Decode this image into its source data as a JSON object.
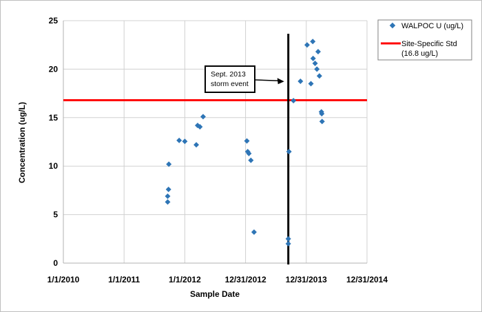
{
  "chart_data": {
    "type": "scatter",
    "xlabel": "Sample Date",
    "ylabel": "Concentration (ug/L)",
    "ylim": [
      0,
      25
    ],
    "yticks": [
      0,
      5,
      10,
      15,
      20,
      25
    ],
    "xlim": [
      "2010-01-01",
      "2014-12-31"
    ],
    "xticks": [
      "2010-01-01",
      "2011-01-01",
      "2012-01-01",
      "2012-12-31",
      "2013-12-31",
      "2014-12-31"
    ],
    "xtick_labels": [
      "1/1/2010",
      "1/1/2011",
      "1/1/2012",
      "12/31/2012",
      "12/31/2013",
      "12/31/2014"
    ],
    "grid": true,
    "legend_position": "top-right",
    "series": [
      {
        "name": "WALPOC U (ug/L)",
        "color": "#2e75b6",
        "marker": "diamond",
        "points": [
          {
            "x": "2011-09-20",
            "y": 6.3
          },
          {
            "x": "2011-09-20",
            "y": 6.9
          },
          {
            "x": "2011-09-25",
            "y": 7.6
          },
          {
            "x": "2011-09-27",
            "y": 10.2
          },
          {
            "x": "2011-11-28",
            "y": 12.65
          },
          {
            "x": "2012-01-01",
            "y": 12.55
          },
          {
            "x": "2012-03-10",
            "y": 12.2
          },
          {
            "x": "2012-03-18",
            "y": 14.2
          },
          {
            "x": "2012-04-01",
            "y": 14.05
          },
          {
            "x": "2012-04-20",
            "y": 15.1
          },
          {
            "x": "2013-01-08",
            "y": 12.6
          },
          {
            "x": "2013-01-13",
            "y": 11.5
          },
          {
            "x": "2013-01-20",
            "y": 11.3
          },
          {
            "x": "2013-02-01",
            "y": 10.6
          },
          {
            "x": "2013-02-20",
            "y": 3.2
          },
          {
            "x": "2013-09-18",
            "y": 11.5
          },
          {
            "x": "2013-09-14",
            "y": 2.5
          },
          {
            "x": "2013-09-14",
            "y": 2.0
          },
          {
            "x": "2013-10-15",
            "y": 16.75
          },
          {
            "x": "2013-11-26",
            "y": 18.75
          },
          {
            "x": "2014-01-05",
            "y": 22.5
          },
          {
            "x": "2014-01-28",
            "y": 18.5
          },
          {
            "x": "2014-02-08",
            "y": 22.85
          },
          {
            "x": "2014-02-10",
            "y": 21.1
          },
          {
            "x": "2014-02-22",
            "y": 20.6
          },
          {
            "x": "2014-03-05",
            "y": 20.0
          },
          {
            "x": "2014-03-12",
            "y": 21.8
          },
          {
            "x": "2014-03-20",
            "y": 19.3
          },
          {
            "x": "2014-04-01",
            "y": 15.6
          },
          {
            "x": "2014-04-03",
            "y": 15.4
          },
          {
            "x": "2014-04-05",
            "y": 14.6
          }
        ]
      },
      {
        "name": "Site-Specific Std (16.8 ug/L)",
        "legend_lines": [
          "Site-Specific Std",
          "(16.8 ug/L)"
        ],
        "type": "hline",
        "color": "#ff0000",
        "y": 16.8
      }
    ],
    "vline": {
      "x": "2013-09-14",
      "color": "#000000"
    },
    "annotation": {
      "lines": [
        "Sept. 2013",
        "storm event"
      ],
      "points_to_x": "2013-09-14",
      "points_to_y": 18.8
    }
  }
}
